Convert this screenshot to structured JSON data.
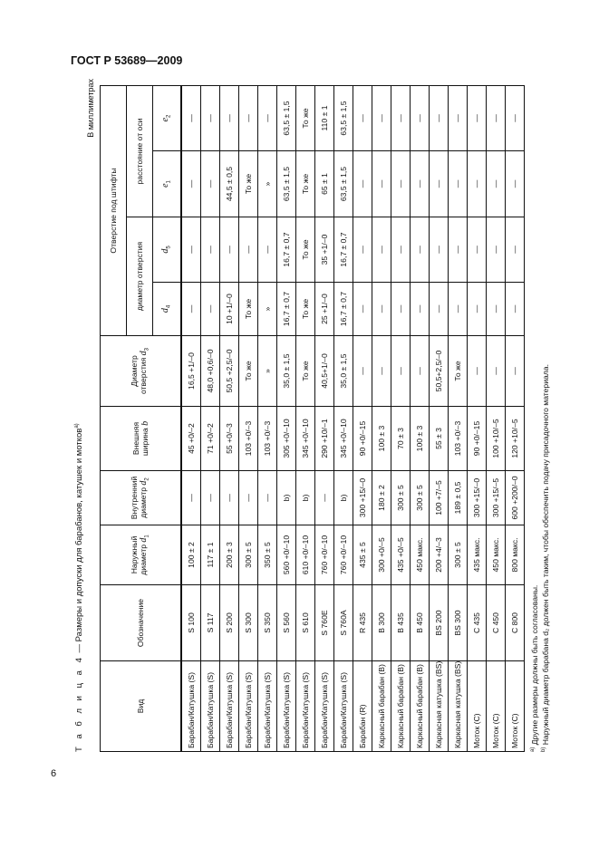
{
  "page": {
    "header": "ГОСТ Р 53689—2009",
    "page_number": "6"
  },
  "table": {
    "caption_prefix": "Т а б л и ц а  4",
    "caption": " — Размеры и допуски для барабанов, катушек и мотков",
    "caption_note": "a)",
    "units": "В миллиметрах",
    "headers": {
      "vid": "Вид",
      "oboz": "Обозначение",
      "d1": {
        "text": "Наружный диаметр ",
        "sym": "d",
        "sub": "1"
      },
      "d2": {
        "text": "Внутренний диаметр ",
        "sym": "d",
        "sub": "2"
      },
      "b": {
        "text": "Внешняя ширина ",
        "sym": "b"
      },
      "d3": {
        "text": "Диаметр отверстия ",
        "sym": "d",
        "sub": "3"
      },
      "pins": "Отверстие под штифты",
      "hole_diam": "диаметр отверстия",
      "axis_dist": "расстояние от оси",
      "d4": {
        "sym": "d",
        "sub": "4"
      },
      "d5": {
        "sym": "d",
        "sub": "5"
      },
      "e1": {
        "sym": "e",
        "sub": "1"
      },
      "e2": {
        "sym": "e",
        "sub": "2"
      }
    },
    "rows": [
      [
        "Барабан/Катушка (S)",
        "S 100",
        "100 ± 2",
        "—",
        "45 +0/–2",
        "16,5 +1/–0",
        "—",
        "—",
        "—",
        "—"
      ],
      [
        "Барабан/Катушка (S)",
        "S 117",
        "117 ± 1",
        "—",
        "71 +0/–2",
        "48,0 +0,6/–0",
        "—",
        "—",
        "—",
        "—"
      ],
      [
        "Барабан/Катушка (S)",
        "S 200",
        "200 ± 3",
        "—",
        "55 +0/–3",
        "50,5 +2,5/–0",
        "10 +1/–0",
        "—",
        "44,5 ± 0,5",
        "—"
      ],
      [
        "Барабан/Катушка (S)",
        "S 300",
        "300 ± 5",
        "—",
        "103 +0/–3",
        "То же",
        "То же",
        "—",
        "То же",
        "—"
      ],
      [
        "Барабан/Катушка (S)",
        "S 350",
        "350 ± 5",
        "—",
        "103 +0/–3",
        "»",
        "»",
        "—",
        "»",
        "—"
      ],
      [
        "Барабан/Катушка (S)",
        "S 560",
        "560 +0/–10",
        "b)",
        "305 +0/–10",
        "35,0 ± 1,5",
        "16,7 ± 0,7",
        "16,7 ± 0,7",
        "63,5 ± 1,5",
        "63,5 ± 1,5"
      ],
      [
        "Барабан/Катушка (S)",
        "S 610",
        "610 +0/–10",
        "b)",
        "345 +0/–10",
        "То же",
        "То же",
        "То же",
        "То же",
        "То же"
      ],
      [
        "Барабан/Катушка (S)",
        "S 760E",
        "760 +0/–10",
        "—",
        "290 +10/–1",
        "40,5+1/–0",
        "25 +1/–0",
        "35 +1/–0",
        "65 ± 1",
        "110 ± 1"
      ],
      [
        "Барабан/Катушка (S)",
        "S 760A",
        "760 +0/–10",
        "b)",
        "345 +0/–10",
        "35,0 ± 1,5",
        "16,7 ± 0,7",
        "16,7 ± 0,7",
        "63,5 ± 1,5",
        "63,5 ± 1,5"
      ],
      [
        "Барабан (R)",
        "R 435",
        "435 ± 5",
        "300 +15/–0",
        "90 +0/–15",
        "—",
        "—",
        "—",
        "—",
        "—"
      ],
      [
        "Каркасный барабан (B)",
        "B 300",
        "300 +0/–5",
        "180 ± 2",
        "100 ± 3",
        "—",
        "—",
        "—",
        "—",
        "—"
      ],
      [
        "Каркасный барабан (B)",
        "B 435",
        "435 +0/–5",
        "300 ± 5",
        "70 ± 3",
        "—",
        "—",
        "—",
        "—",
        "—"
      ],
      [
        "Каркасный барабан (B)",
        "B 450",
        "450 макс.",
        "300 ± 5",
        "100 ± 3",
        "—",
        "—",
        "—",
        "—",
        "—"
      ],
      [
        "Каркасная катушка (BS)",
        "BS 200",
        "200 +4/–3",
        "100 +7/–5",
        "55 ± 3",
        "50,5+2,5/–0",
        "—",
        "—",
        "—",
        "—"
      ],
      [
        "Каркасная катушка (BS)",
        "BS 300",
        "300 ± 5",
        "189 ± 0,5",
        "103 +0/–3",
        "То же",
        "—",
        "—",
        "—",
        "—"
      ],
      [
        "Моток (C)",
        "C 435",
        "435 макс.",
        "300 +15/–0",
        "90 +0/–15",
        "—",
        "—",
        "—",
        "—",
        "—"
      ],
      [
        "Моток (C)",
        "C 450",
        "450 макс.",
        "300 +15/–5",
        "100 +10/–5",
        "—",
        "—",
        "—",
        "—",
        "—"
      ],
      [
        "Моток (C)",
        "C 800",
        "800 макс.",
        "600 +200/–0",
        "120 +10/–5",
        "—",
        "—",
        "—",
        "—",
        "—"
      ]
    ],
    "footnotes": [
      {
        "mark": "a)",
        "text": " Другие размеры должны быть согласованы."
      },
      {
        "mark": "b)",
        "text": " Наружный диаметр барабана d₂ должен быть таким, чтобы обеспечить подачу присадочного материала."
      }
    ]
  }
}
